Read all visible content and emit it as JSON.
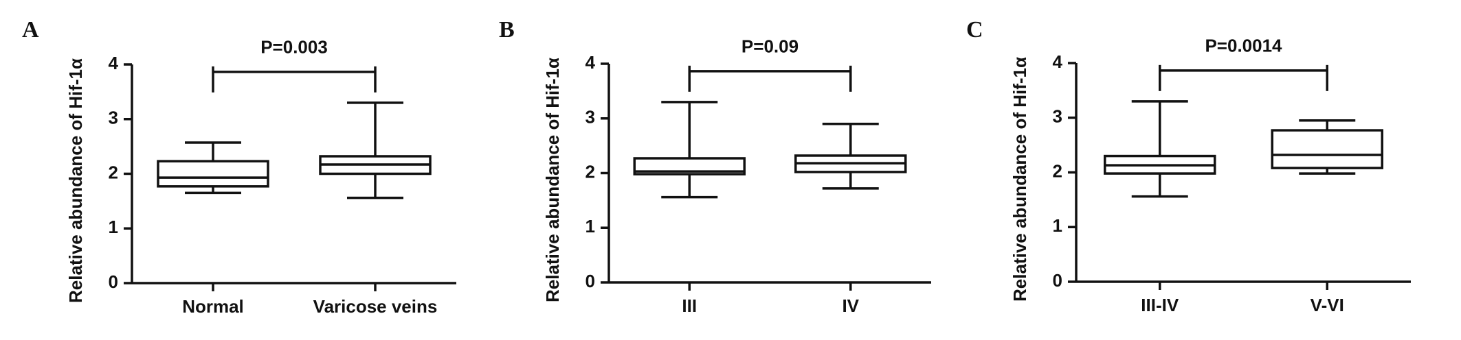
{
  "chart_data": [
    {
      "type": "box",
      "panel": "A",
      "ylabel": "Relative abundance of Hif-1α",
      "annotation": "P=0.003",
      "categories": [
        "Normal",
        "Varicose veins"
      ],
      "series": [
        {
          "name": "min",
          "values": [
            1.65,
            1.56
          ]
        },
        {
          "name": "q1",
          "values": [
            1.77,
            2.0
          ]
        },
        {
          "name": "median",
          "values": [
            1.93,
            2.17
          ]
        },
        {
          "name": "q3",
          "values": [
            2.23,
            2.32
          ]
        },
        {
          "name": "max",
          "values": [
            2.57,
            3.3
          ]
        }
      ],
      "ylim": [
        0,
        4
      ],
      "yticks": [
        0,
        1,
        2,
        3,
        4
      ]
    },
    {
      "type": "box",
      "panel": "B",
      "ylabel": "Relative abundance of Hif-1α",
      "annotation": "P=0.09",
      "categories": [
        "III",
        "IV"
      ],
      "series": [
        {
          "name": "min",
          "values": [
            1.56,
            1.72
          ]
        },
        {
          "name": "q1",
          "values": [
            1.98,
            2.02
          ]
        },
        {
          "name": "median",
          "values": [
            2.03,
            2.18
          ]
        },
        {
          "name": "q3",
          "values": [
            2.27,
            2.32
          ]
        },
        {
          "name": "max",
          "values": [
            3.3,
            2.9
          ]
        }
      ],
      "ylim": [
        0,
        4
      ],
      "yticks": [
        0,
        1,
        2,
        3,
        4
      ]
    },
    {
      "type": "box",
      "panel": "C",
      "ylabel": "Relative abundance of Hif-1α",
      "annotation": "P=0.0014",
      "categories": [
        "III-IV",
        "V-VI"
      ],
      "series": [
        {
          "name": "min",
          "values": [
            1.56,
            1.98
          ]
        },
        {
          "name": "q1",
          "values": [
            1.98,
            2.08
          ]
        },
        {
          "name": "median",
          "values": [
            2.13,
            2.32
          ]
        },
        {
          "name": "q3",
          "values": [
            2.3,
            2.77
          ]
        },
        {
          "name": "max",
          "values": [
            3.3,
            2.95
          ]
        }
      ],
      "ylim": [
        0,
        4
      ],
      "yticks": [
        0,
        1,
        2,
        3,
        4
      ]
    }
  ]
}
